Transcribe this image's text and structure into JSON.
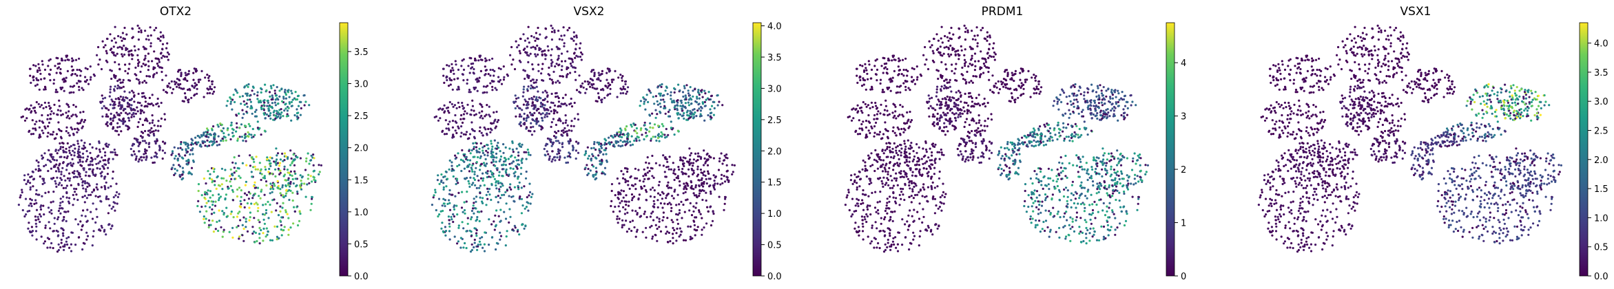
{
  "chart_data": [
    {
      "type": "scatter",
      "title": "OTX2",
      "xlabel": "",
      "ylabel": "",
      "colormap": "viridis",
      "axes_visible": false,
      "colorbar": {
        "min": 0.0,
        "max": 3.95,
        "ticks": [
          0.0,
          0.5,
          1.0,
          1.5,
          2.0,
          2.5,
          3.0,
          3.5
        ],
        "tick_labels": [
          "0.0",
          "0.5",
          "1.0",
          "1.5",
          "2.0",
          "2.5",
          "3.0",
          "3.5"
        ]
      },
      "regions": {
        "upper_left": 0.2,
        "left_branch": 0.5,
        "center": 1.6,
        "upper_right": 2.2,
        "right_arm": 2.7,
        "bottom_right": 3.0,
        "bottom_left": 0.4
      }
    },
    {
      "type": "scatter",
      "title": "VSX2",
      "xlabel": "",
      "ylabel": "",
      "colormap": "viridis",
      "axes_visible": false,
      "colorbar": {
        "min": 0.0,
        "max": 4.05,
        "ticks": [
          0.0,
          0.5,
          1.0,
          1.5,
          2.0,
          2.5,
          3.0,
          3.5,
          4.0
        ],
        "tick_labels": [
          "0.0",
          "0.5",
          "1.0",
          "1.5",
          "2.0",
          "2.5",
          "3.0",
          "3.5",
          "4.0"
        ]
      },
      "regions": {
        "upper_left": 0.3,
        "left_branch": 0.9,
        "center": 1.8,
        "upper_right": 1.9,
        "right_arm": 2.8,
        "bottom_right": 0.2,
        "bottom_left": 2.1
      }
    },
    {
      "type": "scatter",
      "title": "PRDM1",
      "xlabel": "",
      "ylabel": "",
      "colormap": "viridis",
      "axes_visible": false,
      "colorbar": {
        "min": 0,
        "max": 4.75,
        "ticks": [
          0,
          1,
          2,
          3,
          4
        ],
        "tick_labels": [
          "0",
          "1",
          "2",
          "3",
          "4"
        ]
      },
      "regions": {
        "upper_left": 0.1,
        "left_branch": 0.4,
        "center": 2.2,
        "upper_right": 1.4,
        "right_arm": 2.8,
        "bottom_right": 2.6,
        "bottom_left": 0.2
      }
    },
    {
      "type": "scatter",
      "title": "VSX1",
      "xlabel": "",
      "ylabel": "",
      "colormap": "viridis",
      "axes_visible": false,
      "colorbar": {
        "min": 0.0,
        "max": 4.35,
        "ticks": [
          0.0,
          0.5,
          1.0,
          1.5,
          2.0,
          2.5,
          3.0,
          3.5,
          4.0
        ],
        "tick_labels": [
          "0.0",
          "0.5",
          "1.0",
          "1.5",
          "2.0",
          "2.5",
          "3.0",
          "3.5",
          "4.0"
        ]
      },
      "regions": {
        "upper_left": 0.1,
        "left_branch": 0.3,
        "center": 0.9,
        "upper_right": 3.3,
        "right_arm": 1.6,
        "bottom_right": 1.0,
        "bottom_left": 0.2
      }
    }
  ]
}
